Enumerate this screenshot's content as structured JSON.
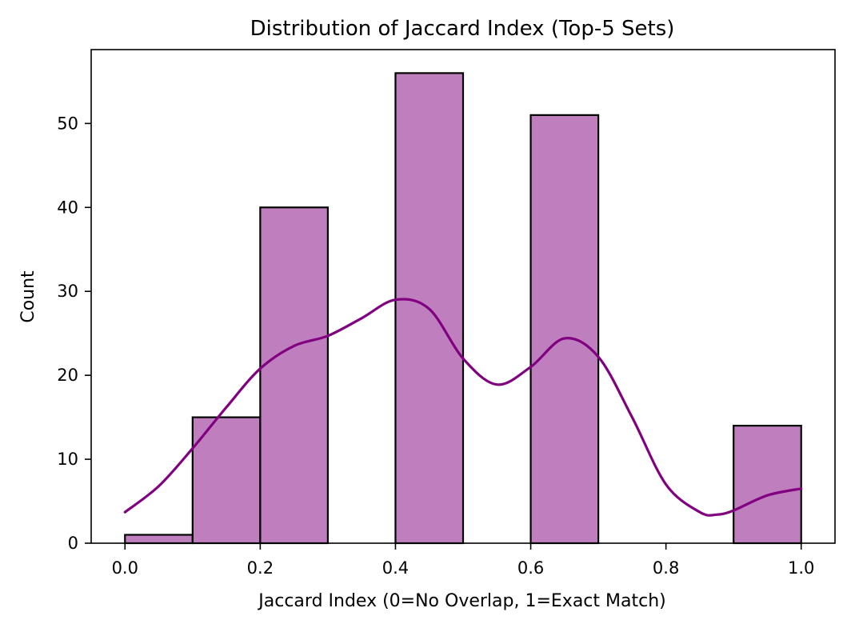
{
  "chart_data": {
    "type": "bar",
    "title": "Distribution of Jaccard Index (Top-5 Sets)",
    "xlabel": "Jaccard Index (0=No Overlap, 1=Exact Match)",
    "ylabel": "Count",
    "xlim": [
      -0.05,
      1.05
    ],
    "ylim": [
      0,
      58.8
    ],
    "xticks": [
      0.0,
      0.2,
      0.4,
      0.6,
      0.8,
      1.0
    ],
    "xtick_labels": [
      "0.0",
      "0.2",
      "0.4",
      "0.6",
      "0.8",
      "1.0"
    ],
    "yticks": [
      0,
      10,
      20,
      30,
      40,
      50
    ],
    "ytick_labels": [
      "0",
      "10",
      "20",
      "30",
      "40",
      "50"
    ],
    "bins": [
      {
        "start": 0.0,
        "end": 0.1,
        "count": 1
      },
      {
        "start": 0.1,
        "end": 0.2,
        "count": 15
      },
      {
        "start": 0.2,
        "end": 0.3,
        "count": 40
      },
      {
        "start": 0.3,
        "end": 0.4,
        "count": 0
      },
      {
        "start": 0.4,
        "end": 0.5,
        "count": 56
      },
      {
        "start": 0.5,
        "end": 0.6,
        "count": 0
      },
      {
        "start": 0.6,
        "end": 0.7,
        "count": 51
      },
      {
        "start": 0.7,
        "end": 0.8,
        "count": 0
      },
      {
        "start": 0.8,
        "end": 0.9,
        "count": 0
      },
      {
        "start": 0.9,
        "end": 1.0,
        "count": 14
      }
    ],
    "kde": {
      "x": [
        0.0,
        0.05,
        0.1,
        0.15,
        0.2,
        0.25,
        0.3,
        0.35,
        0.4,
        0.45,
        0.5,
        0.55,
        0.6,
        0.65,
        0.7,
        0.75,
        0.8,
        0.85,
        0.875,
        0.9,
        0.95,
        1.0
      ],
      "y": [
        3.7,
        6.8,
        11.3,
        16.2,
        20.8,
        23.5,
        24.7,
        26.8,
        29.0,
        27.9,
        22.0,
        18.9,
        21.0,
        24.4,
        22.2,
        15.0,
        7.0,
        3.7,
        3.4,
        3.9,
        5.7,
        6.5
      ]
    },
    "colors": {
      "bar_fill": "#bf7fbf",
      "bar_edge": "#000000",
      "kde_line": "#800080"
    },
    "grid": false,
    "legend": "none"
  }
}
